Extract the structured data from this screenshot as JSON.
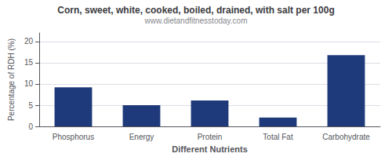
{
  "chart_data": {
    "type": "bar",
    "title": "Corn, sweet, white, cooked, boiled, drained, with salt per 100g",
    "subtitle": "www.dietandfitnesstoday.com",
    "categories": [
      "Phosphorus",
      "Energy",
      "Protein",
      "Total Fat",
      "Carbohydrate"
    ],
    "values": [
      9.2,
      5.0,
      6.1,
      2.1,
      16.8
    ],
    "color": "#1f3a7a",
    "xlabel": "Different Nutrients",
    "ylabel": "Percentage of RDH (%)",
    "ylim": [
      0,
      22
    ],
    "yticks": [
      0,
      5,
      10,
      15,
      20
    ],
    "grid": true
  }
}
